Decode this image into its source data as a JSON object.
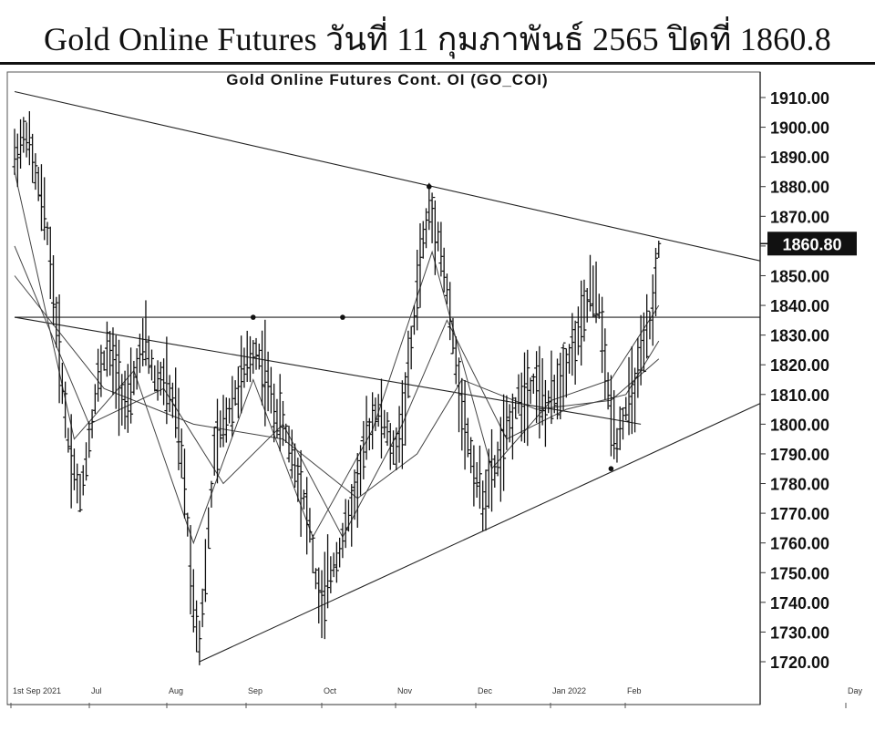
{
  "page": {
    "title": "Gold Online Futures วันที่ 11 กุมภาพันธ์ 2565 ปิดที่ 1860.8"
  },
  "chart_data": {
    "type": "candlestick",
    "title": "Gold Online Futures Cont. OI (GO_COI)",
    "ylim": [
      1715,
      1915
    ],
    "y_ticks": [
      "1910.00",
      "1900.00",
      "1890.00",
      "1880.00",
      "1870.00",
      "1860.00",
      "1850.00",
      "1840.00",
      "1830.00",
      "1820.00",
      "1810.00",
      "1800.00",
      "1790.00",
      "1780.00",
      "1770.00",
      "1760.00",
      "1750.00",
      "1740.00",
      "1730.00",
      "1720.00"
    ],
    "last_value_label": "1860.80",
    "last_value": 1860.8,
    "x_labels": [
      "1st Sep 2021",
      "Jul",
      "Aug",
      "Sep",
      "Oct",
      "Nov",
      "Dec",
      "Jan 2022",
      "Feb",
      "Day"
    ],
    "price_path": [
      [
        0,
        1890
      ],
      [
        4,
        1898
      ],
      [
        8,
        1880
      ],
      [
        11,
        1865
      ],
      [
        14,
        1835
      ],
      [
        18,
        1795
      ],
      [
        20,
        1785
      ],
      [
        22,
        1775
      ],
      [
        25,
        1795
      ],
      [
        28,
        1815
      ],
      [
        31,
        1825
      ],
      [
        34,
        1818
      ],
      [
        38,
        1805
      ],
      [
        41,
        1820
      ],
      [
        44,
        1828
      ],
      [
        47,
        1815
      ],
      [
        50,
        1815
      ],
      [
        54,
        1805
      ],
      [
        57,
        1780
      ],
      [
        60,
        1740
      ],
      [
        62,
        1728
      ],
      [
        64,
        1750
      ],
      [
        67,
        1790
      ],
      [
        70,
        1800
      ],
      [
        74,
        1810
      ],
      [
        78,
        1820
      ],
      [
        81,
        1825
      ],
      [
        84,
        1818
      ],
      [
        87,
        1805
      ],
      [
        90,
        1800
      ],
      [
        93,
        1790
      ],
      [
        96,
        1780
      ],
      [
        99,
        1765
      ],
      [
        101,
        1748
      ],
      [
        103,
        1738
      ],
      [
        106,
        1750
      ],
      [
        109,
        1758
      ],
      [
        112,
        1768
      ],
      [
        115,
        1780
      ],
      [
        118,
        1795
      ],
      [
        121,
        1805
      ],
      [
        124,
        1800
      ],
      [
        127,
        1790
      ],
      [
        130,
        1800
      ],
      [
        133,
        1825
      ],
      [
        136,
        1855
      ],
      [
        139,
        1872
      ],
      [
        142,
        1865
      ],
      [
        145,
        1845
      ],
      [
        148,
        1820
      ],
      [
        151,
        1800
      ],
      [
        154,
        1785
      ],
      [
        157,
        1775
      ],
      [
        160,
        1782
      ],
      [
        163,
        1790
      ],
      [
        166,
        1800
      ],
      [
        169,
        1808
      ],
      [
        172,
        1812
      ],
      [
        175,
        1815
      ],
      [
        178,
        1805
      ],
      [
        181,
        1810
      ],
      [
        184,
        1818
      ],
      [
        187,
        1825
      ],
      [
        190,
        1832
      ],
      [
        193,
        1845
      ],
      [
        196,
        1840
      ],
      [
        199,
        1810
      ],
      [
        202,
        1795
      ],
      [
        205,
        1805
      ],
      [
        208,
        1812
      ],
      [
        211,
        1825
      ],
      [
        214,
        1838
      ],
      [
        216,
        1860.8
      ]
    ],
    "moving_averages": [
      {
        "name": "MA-short",
        "points": [
          [
            0,
            1885
          ],
          [
            20,
            1795
          ],
          [
            40,
            1818
          ],
          [
            60,
            1760
          ],
          [
            80,
            1815
          ],
          [
            100,
            1762
          ],
          [
            120,
            1798
          ],
          [
            140,
            1858
          ],
          [
            160,
            1785
          ],
          [
            180,
            1808
          ],
          [
            200,
            1815
          ],
          [
            216,
            1840
          ]
        ]
      },
      {
        "name": "MA-mid",
        "points": [
          [
            0,
            1860
          ],
          [
            25,
            1800
          ],
          [
            50,
            1812
          ],
          [
            70,
            1780
          ],
          [
            90,
            1800
          ],
          [
            110,
            1762
          ],
          [
            130,
            1800
          ],
          [
            145,
            1835
          ],
          [
            165,
            1795
          ],
          [
            185,
            1805
          ],
          [
            205,
            1810
          ],
          [
            216,
            1828
          ]
        ]
      },
      {
        "name": "MA-long",
        "points": [
          [
            0,
            1850
          ],
          [
            30,
            1812
          ],
          [
            60,
            1800
          ],
          [
            90,
            1795
          ],
          [
            115,
            1775
          ],
          [
            135,
            1790
          ],
          [
            150,
            1815
          ],
          [
            175,
            1805
          ],
          [
            200,
            1808
          ],
          [
            216,
            1822
          ]
        ]
      }
    ],
    "trendlines": [
      {
        "name": "upper-resistance",
        "from": [
          0,
          1912
        ],
        "to": [
          250,
          1855
        ]
      },
      {
        "name": "lower-support",
        "from": [
          62,
          1720
        ],
        "to": [
          250,
          1807
        ]
      },
      {
        "name": "horizontal-level",
        "from": [
          0,
          1836
        ],
        "to": [
          250,
          1836
        ]
      },
      {
        "name": "mid-descending",
        "from": [
          0,
          1836
        ],
        "to": [
          210,
          1800
        ]
      }
    ],
    "pivot_markers": [
      [
        139,
        1880
      ],
      [
        80,
        1836
      ],
      [
        110,
        1836
      ],
      [
        200,
        1785
      ]
    ],
    "x_range": [
      0,
      250
    ],
    "grid": false,
    "legend": "none"
  }
}
